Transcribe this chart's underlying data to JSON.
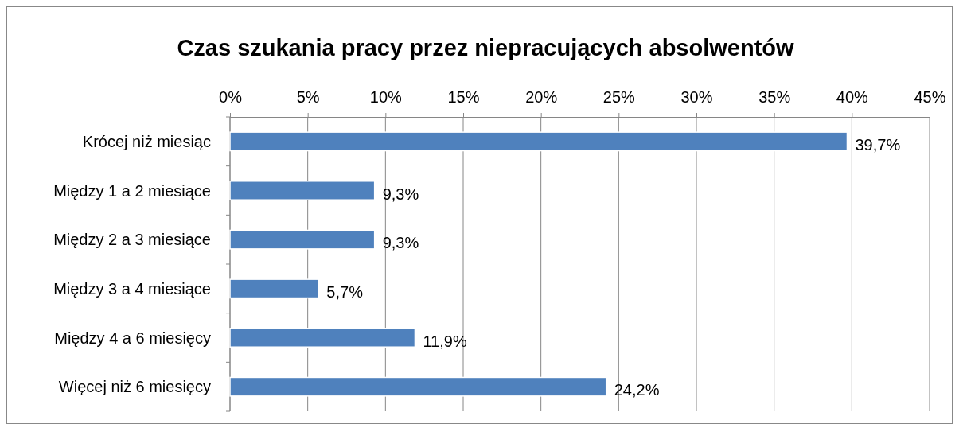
{
  "chart_data": {
    "type": "bar",
    "orientation": "horizontal",
    "title": "Czas szukania pracy przez niepracujących absolwentów",
    "categories": [
      "Krócej niż miesiąc",
      "Między 1 a 2 miesiące",
      "Między 2 a 3 miesiące",
      "Między 3 a 4 miesiące",
      "Między 4 a 6 miesięcy",
      "Więcej niż 6 miesięcy"
    ],
    "values": [
      39.7,
      9.3,
      9.3,
      5.7,
      11.9,
      24.2
    ],
    "value_labels": [
      "39,7%",
      "9,3%",
      "9,3%",
      "5,7%",
      "11,9%",
      "24,2%"
    ],
    "color": "#4f81bd",
    "xlim": [
      0,
      45
    ],
    "xticks": [
      {
        "value": 0,
        "label": "0%"
      },
      {
        "value": 5,
        "label": "5%"
      },
      {
        "value": 10,
        "label": "10%"
      },
      {
        "value": 15,
        "label": "15%"
      },
      {
        "value": 20,
        "label": "20%"
      },
      {
        "value": 25,
        "label": "25%"
      },
      {
        "value": 30,
        "label": "30%"
      },
      {
        "value": 35,
        "label": "35%"
      },
      {
        "value": 40,
        "label": "40%"
      },
      {
        "value": 45,
        "label": "45%"
      }
    ],
    "grid": "x"
  }
}
